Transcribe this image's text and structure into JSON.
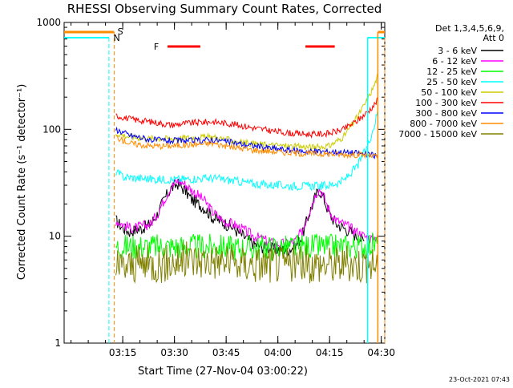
{
  "chart_data": {
    "type": "line",
    "title": "RHESSI Observing Summary Count Rates, Corrected",
    "xlabel": "Start Time (27-Nov-04 03:00:22)",
    "ylabel": "Corrected Count Rate (s⁻¹ detector⁻¹)",
    "yscale": "log",
    "ylim": [
      1,
      1000
    ],
    "xlim_minutes": [
      -2,
      91
    ],
    "x_ticks": [
      {
        "label": "03:15",
        "minute": 15
      },
      {
        "label": "03:30",
        "minute": 30
      },
      {
        "label": "03:45",
        "minute": 45
      },
      {
        "label": "04:00",
        "minute": 60
      },
      {
        "label": "04:15",
        "minute": 75
      },
      {
        "label": "04:30",
        "minute": 90
      }
    ],
    "y_ticks": [
      {
        "label": "1",
        "value": 1
      },
      {
        "label": "10",
        "value": 10
      },
      {
        "label": "100",
        "value": 100
      },
      {
        "label": "1000",
        "value": 1000
      }
    ],
    "legend_header": [
      "Det 1,3,4,5,6,9,",
      "Att 0"
    ],
    "legend_position": "right",
    "footer_date": "23-Oct-2021 07:43",
    "series": [
      {
        "name": "3 - 6 keV",
        "color": "#000000",
        "points": [
          [
            13,
            14
          ],
          [
            15,
            12
          ],
          [
            17,
            11
          ],
          [
            19,
            11.5
          ],
          [
            21,
            12
          ],
          [
            23,
            13
          ],
          [
            25,
            16
          ],
          [
            27,
            22
          ],
          [
            29,
            28
          ],
          [
            31,
            31
          ],
          [
            33,
            27
          ],
          [
            35,
            22
          ],
          [
            37,
            20
          ],
          [
            39,
            18
          ],
          [
            41,
            15
          ],
          [
            43,
            14
          ],
          [
            45,
            13
          ],
          [
            47,
            12
          ],
          [
            49,
            10.5
          ],
          [
            51,
            9.5
          ],
          [
            53,
            8.5
          ],
          [
            55,
            8
          ],
          [
            57,
            7.8
          ],
          [
            59,
            7.5
          ],
          [
            61,
            7.5
          ],
          [
            63,
            7.5
          ],
          [
            65,
            8
          ],
          [
            67,
            10
          ],
          [
            69,
            16
          ],
          [
            71,
            24
          ],
          [
            72,
            27
          ],
          [
            73,
            24
          ],
          [
            75,
            16
          ],
          [
            77,
            13
          ],
          [
            79,
            12
          ],
          [
            81,
            11
          ],
          [
            83,
            10
          ],
          [
            85,
            9
          ]
        ]
      },
      {
        "name": "6 - 12 keV",
        "color": "#ff00ff",
        "points": [
          [
            13,
            14
          ],
          [
            15,
            13
          ],
          [
            17,
            12
          ],
          [
            19,
            12
          ],
          [
            21,
            12.5
          ],
          [
            23,
            13
          ],
          [
            25,
            16
          ],
          [
            27,
            22
          ],
          [
            29,
            29
          ],
          [
            31,
            33
          ],
          [
            33,
            31
          ],
          [
            35,
            27
          ],
          [
            37,
            24
          ],
          [
            39,
            21
          ],
          [
            41,
            17
          ],
          [
            43,
            15
          ],
          [
            45,
            13.5
          ],
          [
            47,
            13
          ],
          [
            49,
            12
          ],
          [
            51,
            11
          ],
          [
            53,
            10
          ],
          [
            55,
            9.5
          ],
          [
            57,
            9
          ],
          [
            59,
            8.5
          ],
          [
            61,
            8.5
          ],
          [
            63,
            8.5
          ],
          [
            65,
            9
          ],
          [
            67,
            11
          ],
          [
            69,
            17
          ],
          [
            71,
            25
          ],
          [
            72,
            28
          ],
          [
            73,
            25
          ],
          [
            75,
            17
          ],
          [
            77,
            14
          ],
          [
            79,
            13
          ],
          [
            81,
            12
          ],
          [
            83,
            11
          ],
          [
            85,
            10
          ],
          [
            87,
            9.5
          ],
          [
            89,
            10
          ]
        ]
      },
      {
        "name": "12 - 25 keV",
        "color": "#00ff00",
        "points": [
          [
            13,
            8
          ],
          [
            20,
            8
          ],
          [
            27,
            8
          ],
          [
            34,
            8
          ],
          [
            41,
            8
          ],
          [
            48,
            7.8
          ],
          [
            55,
            7.8
          ],
          [
            62,
            7.8
          ],
          [
            69,
            8
          ],
          [
            76,
            8
          ],
          [
            83,
            8
          ],
          [
            89,
            8.5
          ]
        ]
      },
      {
        "name": "25 - 50 keV",
        "color": "#00ffff",
        "points": [
          [
            13,
            40
          ],
          [
            15,
            36
          ],
          [
            19,
            35
          ],
          [
            25,
            34
          ],
          [
            31,
            34
          ],
          [
            35,
            34.5
          ],
          [
            41,
            35
          ],
          [
            47,
            33
          ],
          [
            53,
            31
          ],
          [
            59,
            30
          ],
          [
            65,
            29.5
          ],
          [
            71,
            29.5
          ],
          [
            75,
            30
          ],
          [
            79,
            33
          ],
          [
            83,
            45
          ],
          [
            86,
            70
          ],
          [
            88,
            110
          ],
          [
            89,
            150
          ]
        ]
      },
      {
        "name": "50 - 100 keV",
        "color": "#cccc00",
        "points": [
          [
            13,
            92
          ],
          [
            17,
            85
          ],
          [
            23,
            82
          ],
          [
            29,
            82
          ],
          [
            35,
            84
          ],
          [
            41,
            85
          ],
          [
            47,
            78
          ],
          [
            53,
            73
          ],
          [
            59,
            71
          ],
          [
            65,
            69
          ],
          [
            71,
            68
          ],
          [
            75,
            70
          ],
          [
            79,
            85
          ],
          [
            83,
            130
          ],
          [
            86,
            190
          ],
          [
            88,
            260
          ],
          [
            89,
            320
          ]
        ]
      },
      {
        "name": "100 - 300 keV",
        "color": "#ff0000",
        "points": [
          [
            13,
            135
          ],
          [
            17,
            125
          ],
          [
            23,
            118
          ],
          [
            29,
            110
          ],
          [
            35,
            115
          ],
          [
            41,
            118
          ],
          [
            47,
            112
          ],
          [
            53,
            103
          ],
          [
            59,
            96
          ],
          [
            65,
            91
          ],
          [
            71,
            90
          ],
          [
            75,
            92
          ],
          [
            79,
            100
          ],
          [
            83,
            120
          ],
          [
            86,
            145
          ],
          [
            88,
            170
          ],
          [
            89,
            190
          ]
        ]
      },
      {
        "name": "300 - 800 keV",
        "color": "#0000ff",
        "points": [
          [
            13,
            100
          ],
          [
            17,
            88
          ],
          [
            23,
            80
          ],
          [
            29,
            78
          ],
          [
            35,
            78
          ],
          [
            41,
            80
          ],
          [
            47,
            75
          ],
          [
            53,
            70
          ],
          [
            59,
            66
          ],
          [
            65,
            63
          ],
          [
            71,
            62
          ],
          [
            75,
            62
          ],
          [
            79,
            61
          ],
          [
            83,
            60
          ],
          [
            86,
            58
          ],
          [
            88,
            57
          ],
          [
            89,
            56
          ]
        ]
      },
      {
        "name": "800 - 7000 keV",
        "color": "#ff8c00",
        "points": [
          [
            13,
            85
          ],
          [
            17,
            74
          ],
          [
            23,
            70
          ],
          [
            29,
            70
          ],
          [
            35,
            72
          ],
          [
            41,
            74
          ],
          [
            47,
            68
          ],
          [
            53,
            64
          ],
          [
            59,
            62
          ],
          [
            65,
            60
          ],
          [
            71,
            59
          ],
          [
            75,
            59
          ],
          [
            79,
            58
          ],
          [
            83,
            58
          ],
          [
            86,
            57
          ],
          [
            88,
            56
          ],
          [
            89,
            55
          ]
        ]
      },
      {
        "name": "7000 - 15000 keV",
        "color": "#808000",
        "points": [
          [
            13,
            5
          ],
          [
            20,
            5.5
          ],
          [
            27,
            5.5
          ],
          [
            34,
            6
          ],
          [
            41,
            6
          ],
          [
            48,
            5.5
          ],
          [
            55,
            5.5
          ],
          [
            62,
            5.5
          ],
          [
            69,
            5.5
          ],
          [
            76,
            5.5
          ],
          [
            83,
            5.5
          ],
          [
            89,
            5.5
          ]
        ]
      }
    ],
    "annotations": [
      {
        "text": "S",
        "color": "#ff8c00"
      },
      {
        "text": "N",
        "color": "#00ffff"
      },
      {
        "text": "F",
        "color": "#ff0000"
      }
    ]
  }
}
